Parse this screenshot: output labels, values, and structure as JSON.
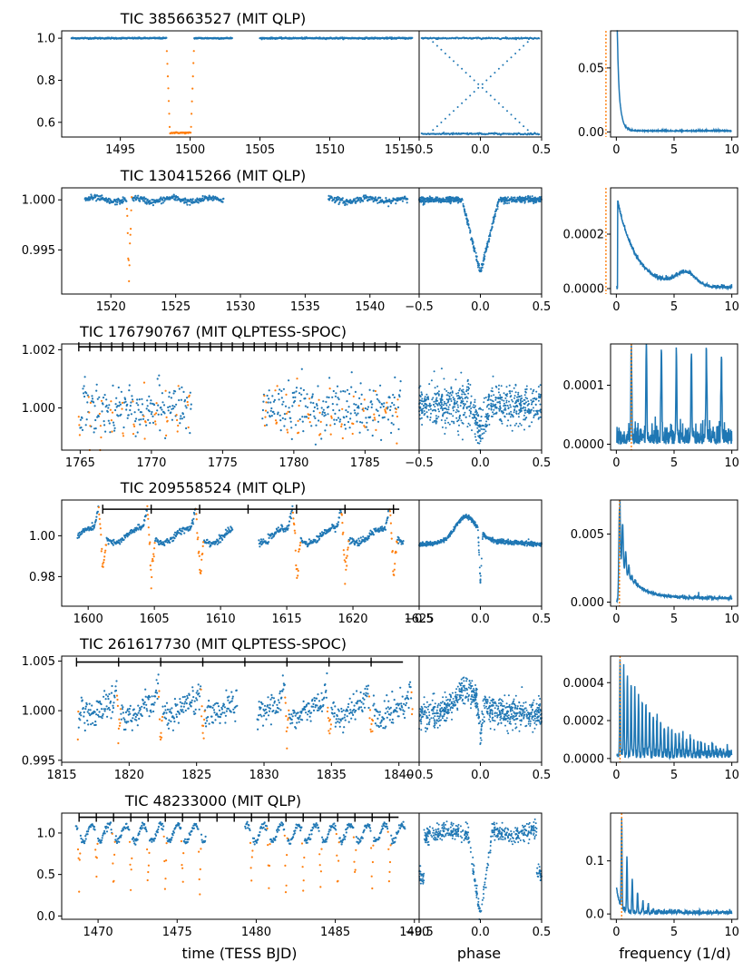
{
  "figure": {
    "xlabels": {
      "time": "time (TESS BJD)",
      "phase": "phase",
      "frequency": "frequency (1/d)"
    }
  },
  "colors": {
    "series": "#1f77b4",
    "eclipse": "#ff7f0e",
    "marker": "#ff7f0e",
    "axes": "#000000"
  },
  "chart_data": [
    {
      "type": "scatter",
      "title": "TIC 385663527 (MIT QLP)",
      "series_names": [
        "flux",
        "in-eclipse flux"
      ],
      "lc": {
        "xlim": [
          1490.8,
          1516.4
        ],
        "ylim": [
          0.53,
          1.035
        ],
        "xticks": [
          1495,
          1500,
          1505,
          1510,
          1515
        ],
        "xtick_labels": [
          "1495",
          "1500",
          "1505",
          "1510",
          "1515"
        ],
        "yticks": [
          0.6,
          0.8,
          1.0
        ],
        "ytick_labels": [
          "0.6",
          "0.8",
          "1.0"
        ],
        "segments": [
          [
            1491.5,
            1503.0
          ],
          [
            1505.0,
            1515.9
          ]
        ],
        "noise": 0.0015,
        "osc_amp": 0,
        "osc_period": 1,
        "cusp_amp": 0,
        "eclipses": [
          {
            "center": 1499.3,
            "half_width": 1.0,
            "depth": 0.45,
            "shape": "box"
          }
        ],
        "ephemeris": null
      },
      "phase": {
        "xlim": [
          -0.5,
          0.5
        ],
        "ylim": [
          0.53,
          1.035
        ],
        "xticks": [
          -0.5,
          0.0,
          0.5
        ],
        "xtick_labels": [
          "−0.5",
          "0.0",
          "0.5"
        ],
        "kind": "cross",
        "base": 1.0,
        "low": 0.545,
        "noise": 0.002,
        "depth": 0,
        "width": 0.05,
        "osc_amp": 0
      },
      "periodogram": {
        "xlim": [
          -0.5,
          10.5
        ],
        "ylim": [
          -0.004,
          0.079
        ],
        "xticks": [
          0,
          5,
          10
        ],
        "xtick_labels": [
          "0",
          "5",
          "10"
        ],
        "yticks": [
          0.0,
          0.05
        ],
        "ytick_labels": [
          "0.00",
          "0.05"
        ],
        "marker_freq": -0.9,
        "peak_freqs": [
          0.02
        ],
        "decay": {
          "amp": 0.074,
          "start": 0.02,
          "scale": 0.25,
          "floor": 0.0005
        },
        "harmonic_amp": 0.012,
        "harmonic_decay": 0.6,
        "harmonic_width": 0.1,
        "noise": 0.0008,
        "hump": null
      }
    },
    {
      "type": "scatter",
      "title": "TIC 130415266 (MIT QLP)",
      "series_names": [
        "flux",
        "in-eclipse flux"
      ],
      "lc": {
        "xlim": [
          1516.2,
          1543.8
        ],
        "ylim": [
          0.9906,
          1.0012
        ],
        "xticks": [
          1520,
          1525,
          1530,
          1535,
          1540
        ],
        "xtick_labels": [
          "1520",
          "1525",
          "1530",
          "1535",
          "1540"
        ],
        "yticks": [
          0.995,
          1.0
        ],
        "ytick_labels": [
          "0.995",
          "1.000"
        ],
        "segments": [
          [
            1518.0,
            1528.7
          ],
          [
            1536.8,
            1542.9
          ]
        ],
        "noise": 0.00015,
        "osc_amp": 0.0002,
        "osc_period": 3.0,
        "cusp_amp": 0,
        "eclipses": [
          {
            "center": 1521.4,
            "half_width": 0.2,
            "depth": 0.0091,
            "shape": "v"
          }
        ],
        "ephemeris": null
      },
      "phase": {
        "xlim": [
          -0.5,
          0.5
        ],
        "ylim": [
          0.9906,
          1.0012
        ],
        "xticks": [
          -0.5,
          0.0,
          0.5
        ],
        "xtick_labels": [
          "−0.5",
          "0.0",
          "0.5"
        ],
        "kind": "dip",
        "base": 1.0,
        "noise": 0.00015,
        "depth": 0.0073,
        "width": 0.15,
        "osc_amp": 0
      },
      "periodogram": {
        "xlim": [
          -0.5,
          10.5
        ],
        "ylim": [
          -2e-05,
          0.00037
        ],
        "xticks": [
          0,
          5,
          10
        ],
        "xtick_labels": [
          "0",
          "5",
          "10"
        ],
        "yticks": [
          0.0,
          0.0002
        ],
        "ytick_labels": [
          "0.0000",
          "0.0002"
        ],
        "marker_freq": -0.9,
        "peak_freqs": [
          0.15
        ],
        "decay": {
          "amp": 0.00032,
          "start": 0.1,
          "scale": 1.6,
          "floor": 0.0
        },
        "harmonic_amp": 0,
        "harmonic_decay": 1,
        "harmonic_width": 0.1,
        "noise": 1e-05,
        "hump": {
          "center": 6.0,
          "amp": 5e-05,
          "width": 1.2
        }
      }
    },
    {
      "type": "scatter",
      "title": "TIC 176790767 (MIT QLPTESS-SPOC)",
      "series_names": [
        "flux",
        "in-eclipse flux"
      ],
      "lc": {
        "xlim": [
          1763.7,
          1788.8
        ],
        "ylim": [
          0.99855,
          1.0022
        ],
        "xticks": [
          1765,
          1770,
          1775,
          1780,
          1785
        ],
        "xtick_labels": [
          "1765",
          "1770",
          "1775",
          "1780",
          "1785"
        ],
        "yticks": [
          1.0,
          1.002
        ],
        "ytick_labels": [
          "1.000",
          "1.002"
        ],
        "segments": [
          [
            1764.9,
            1772.8
          ],
          [
            1777.8,
            1787.5
          ]
        ],
        "noise": 0.00045,
        "osc_amp": 0,
        "osc_period": 1,
        "cusp_amp": 0,
        "eclipses": [],
        "ephemeris": {
          "t0": 1764.9,
          "period": 0.77,
          "t_end": 1787.5,
          "half_width": 0.08,
          "depth": 0.0008,
          "ymark": 1.0021
        }
      },
      "phase": {
        "xlim": [
          -0.5,
          0.5
        ],
        "ylim": [
          0.99855,
          1.0022
        ],
        "xticks": [
          -0.5,
          0.0,
          0.5
        ],
        "xtick_labels": [
          "−0.5",
          "0.0",
          "0.5"
        ],
        "kind": "noisy",
        "base": 1.0001,
        "noise": 0.00035,
        "depth": 0.001,
        "width": 0.08,
        "osc_amp": 0
      },
      "periodogram": {
        "xlim": [
          -0.5,
          10.5
        ],
        "ylim": [
          -1e-05,
          0.00017
        ],
        "xticks": [
          0,
          5,
          10
        ],
        "xtick_labels": [
          "0",
          "5",
          "10"
        ],
        "yticks": [
          0.0,
          0.0001
        ],
        "ytick_labels": [
          "0.0000",
          "0.0001"
        ],
        "marker_freq": 1.3,
        "peak_freqs": [
          1.3
        ],
        "decay": null,
        "harmonic_amp": 0.00016,
        "harmonic_decay": 0.02,
        "harmonic_width": 0.06,
        "noise": 2.5e-05,
        "hump": null
      }
    },
    {
      "type": "scatter",
      "title": "TIC 209558524 (MIT QLP)",
      "series_names": [
        "flux",
        "in-eclipse flux"
      ],
      "lc": {
        "xlim": [
          1598.0,
          1625.0
        ],
        "ylim": [
          0.9655,
          1.0175
        ],
        "xticks": [
          1600,
          1605,
          1610,
          1615,
          1620,
          1625
        ],
        "xtick_labels": [
          "1600",
          "1605",
          "1610",
          "1615",
          "1620",
          "1625"
        ],
        "yticks": [
          0.98,
          1.0
        ],
        "ytick_labels": [
          "0.98",
          "1.00"
        ],
        "segments": [
          [
            1599.2,
            1610.9
          ],
          [
            1612.9,
            1623.8
          ]
        ],
        "noise": 0.0008,
        "osc_amp": 0,
        "osc_period": 1,
        "cusp_amp": 0.012,
        "eclipses": [],
        "ephemeris": {
          "t0": 1601.1,
          "period": 3.66,
          "t_end": 1623.5,
          "half_width": 0.3,
          "depth": 0.027,
          "ymark": 1.013
        }
      },
      "phase": {
        "xlim": [
          -0.5,
          0.5
        ],
        "ylim": [
          0.9655,
          1.0175
        ],
        "xticks": [
          -0.5,
          0.0,
          0.5
        ],
        "xtick_labels": [
          "−0.5",
          "0.0",
          "0.5"
        ],
        "kind": "cusp",
        "base": 0.998,
        "noise": 0.0005,
        "depth": 0.025,
        "width": 0.02,
        "osc_amp": 0.012
      },
      "periodogram": {
        "xlim": [
          -0.5,
          10.5
        ],
        "ylim": [
          -0.0003,
          0.0075
        ],
        "xticks": [
          0,
          5,
          10
        ],
        "xtick_labels": [
          "0",
          "5",
          "10"
        ],
        "yticks": [
          0.0,
          0.005
        ],
        "ytick_labels": [
          "0.000",
          "0.005"
        ],
        "marker_freq": 0.27,
        "peak_freqs": [
          0.27,
          0.55
        ],
        "decay": {
          "amp": 0.0025,
          "start": 0.3,
          "scale": 1.5,
          "floor": 0.0002
        },
        "harmonic_amp": 0.0068,
        "harmonic_decay": 0.7,
        "harmonic_width": 0.08,
        "noise": 0.00018,
        "hump": null
      }
    },
    {
      "type": "scatter",
      "title": "TIC 261617730 (MIT QLPTESS-SPOC)",
      "series_names": [
        "flux",
        "in-eclipse flux"
      ],
      "lc": {
        "xlim": [
          1815.0,
          1841.5
        ],
        "ylim": [
          0.9948,
          1.0055
        ],
        "xticks": [
          1815,
          1820,
          1825,
          1830,
          1835,
          1840
        ],
        "xtick_labels": [
          "1815",
          "1820",
          "1825",
          "1830",
          "1835",
          "1840"
        ],
        "yticks": [
          0.995,
          1.0,
          1.005
        ],
        "ytick_labels": [
          "0.995",
          "1.000",
          "1.005"
        ],
        "segments": [
          [
            1816.2,
            1828.0
          ],
          [
            1829.5,
            1841.0
          ]
        ],
        "noise": 0.0007,
        "osc_amp": 0,
        "osc_period": 1,
        "cusp_amp": 0.002,
        "eclipses": [],
        "ephemeris": {
          "t0": 1816.1,
          "period": 3.12,
          "t_end": 1840.3,
          "half_width": 0.15,
          "depth": 0.004,
          "ymark": 1.0049
        }
      },
      "phase": {
        "xlim": [
          -0.5,
          0.5
        ],
        "ylim": [
          0.9948,
          1.0055
        ],
        "xticks": [
          -0.5,
          0.0,
          0.5
        ],
        "xtick_labels": [
          "−0.5",
          "0.0",
          "0.5"
        ],
        "kind": "cusp",
        "base": 1.0,
        "noise": 0.0007,
        "depth": 0.0035,
        "width": 0.025,
        "osc_amp": 0.0022
      },
      "periodogram": {
        "xlim": [
          -0.5,
          10.5
        ],
        "ylim": [
          -2e-05,
          0.00054
        ],
        "xticks": [
          0,
          5,
          10
        ],
        "xtick_labels": [
          "0",
          "5",
          "10"
        ],
        "yticks": [
          0.0,
          0.0002,
          0.0004
        ],
        "ytick_labels": [
          "0.0000",
          "0.0002",
          "0.0004"
        ],
        "marker_freq": 0.32,
        "peak_freqs": [
          0.32
        ],
        "decay": null,
        "harmonic_amp": 0.00052,
        "harmonic_decay": 0.1,
        "harmonic_width": 0.05,
        "noise": 4e-05,
        "hump": null
      }
    },
    {
      "type": "scatter",
      "title": "TIC 48233000 (MIT QLP)",
      "series_names": [
        "flux",
        "in-eclipse flux"
      ],
      "lc": {
        "xlim": [
          1467.7,
          1490.3
        ],
        "ylim": [
          -0.04,
          1.24
        ],
        "xticks": [
          1470,
          1475,
          1480,
          1485,
          1490
        ],
        "xtick_labels": [
          "1470",
          "1475",
          "1480",
          "1485",
          "1490"
        ],
        "yticks": [
          0.0,
          0.5,
          1.0
        ],
        "ytick_labels": [
          "0.0",
          "0.5",
          "1.0"
        ],
        "segments": [
          [
            1468.6,
            1476.8
          ],
          [
            1479.3,
            1489.4
          ]
        ],
        "noise": 0.02,
        "osc_amp": 0.1,
        "osc_period": 1.09,
        "cusp_amp": 0,
        "eclipses": [],
        "ephemeris": {
          "t0": 1468.8,
          "period": 1.09,
          "t_end": 1489.0,
          "half_width": 0.09,
          "depth": 0.85,
          "ymark": 1.19
        }
      },
      "phase": {
        "xlim": [
          -0.5,
          0.5
        ],
        "ylim": [
          -0.04,
          1.24
        ],
        "xticks": [
          -0.5,
          0.0,
          0.5
        ],
        "xtick_labels": [
          "−0.5",
          "0.0",
          "0.5"
        ],
        "kind": "deep",
        "base": 1.0,
        "noise": 0.04,
        "depth": 1.0,
        "width": 0.1,
        "osc_amp": 0.1
      },
      "periodogram": {
        "xlim": [
          -0.5,
          10.5
        ],
        "ylim": [
          -0.01,
          0.19
        ],
        "xticks": [
          0,
          5,
          10
        ],
        "xtick_labels": [
          "0",
          "5",
          "10"
        ],
        "yticks": [
          0.0,
          0.1
        ],
        "ytick_labels": [
          "0.0",
          "0.1"
        ],
        "marker_freq": 0.46,
        "peak_freqs": [
          0.46,
          0.92
        ],
        "decay": {
          "amp": 0.05,
          "start": 0.0,
          "scale": 0.3,
          "floor": 0.0
        },
        "harmonic_amp": 0.17,
        "harmonic_decay": 0.5,
        "harmonic_width": 0.05,
        "noise": 0.006,
        "hump": null
      }
    }
  ]
}
